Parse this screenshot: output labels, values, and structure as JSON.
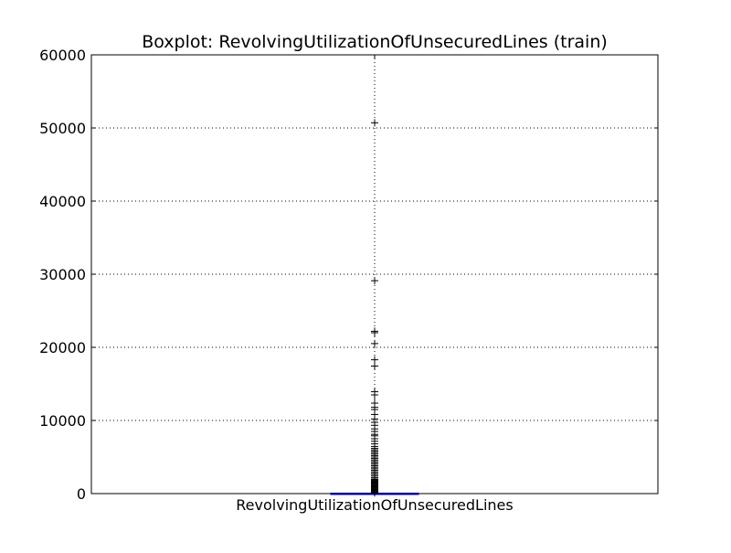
{
  "chart_data": {
    "type": "box",
    "title": "Boxplot: RevolvingUtilizationOfUnsecuredLines (train)",
    "xlabel": "",
    "ylabel": "",
    "categories": [
      "RevolvingUtilizationOfUnsecuredLines"
    ],
    "ylim": [
      0,
      60000
    ],
    "yticks": [
      0,
      10000,
      20000,
      30000,
      40000,
      50000,
      60000
    ],
    "ytick_labels": [
      "0",
      "10000",
      "20000",
      "30000",
      "40000",
      "50000",
      "60000"
    ],
    "grid": true,
    "legend": "none",
    "box": {
      "q1": 0.03,
      "median": 0.15,
      "q3": 0.56,
      "whisker_low": 0,
      "whisker_high": 1.35
    },
    "outliers": [
      50708,
      29110,
      22198,
      22000,
      20514,
      18300,
      17441,
      13930,
      13498,
      12369,
      11800,
      11500,
      10821,
      10200,
      9740,
      9340,
      8851,
      8497,
      8100,
      7900,
      7500,
      7150,
      6800,
      6450,
      6200,
      6000,
      5800,
      5600,
      5400,
      5200,
      5000,
      4800,
      4600,
      4400,
      4200,
      4000,
      3800,
      3600,
      3400,
      3200,
      3000,
      2800,
      2600,
      2400,
      2200,
      2000,
      1900,
      1800,
      1700,
      1600,
      1500,
      1400,
      1300,
      1200,
      1100,
      1000,
      900,
      800,
      700,
      600,
      500,
      400,
      300,
      200,
      100
    ],
    "colors": {
      "box": "#0000ff",
      "median": "#ff0000",
      "whisker": "#0000ff",
      "flier": "#000000",
      "grid": "#000000"
    }
  }
}
